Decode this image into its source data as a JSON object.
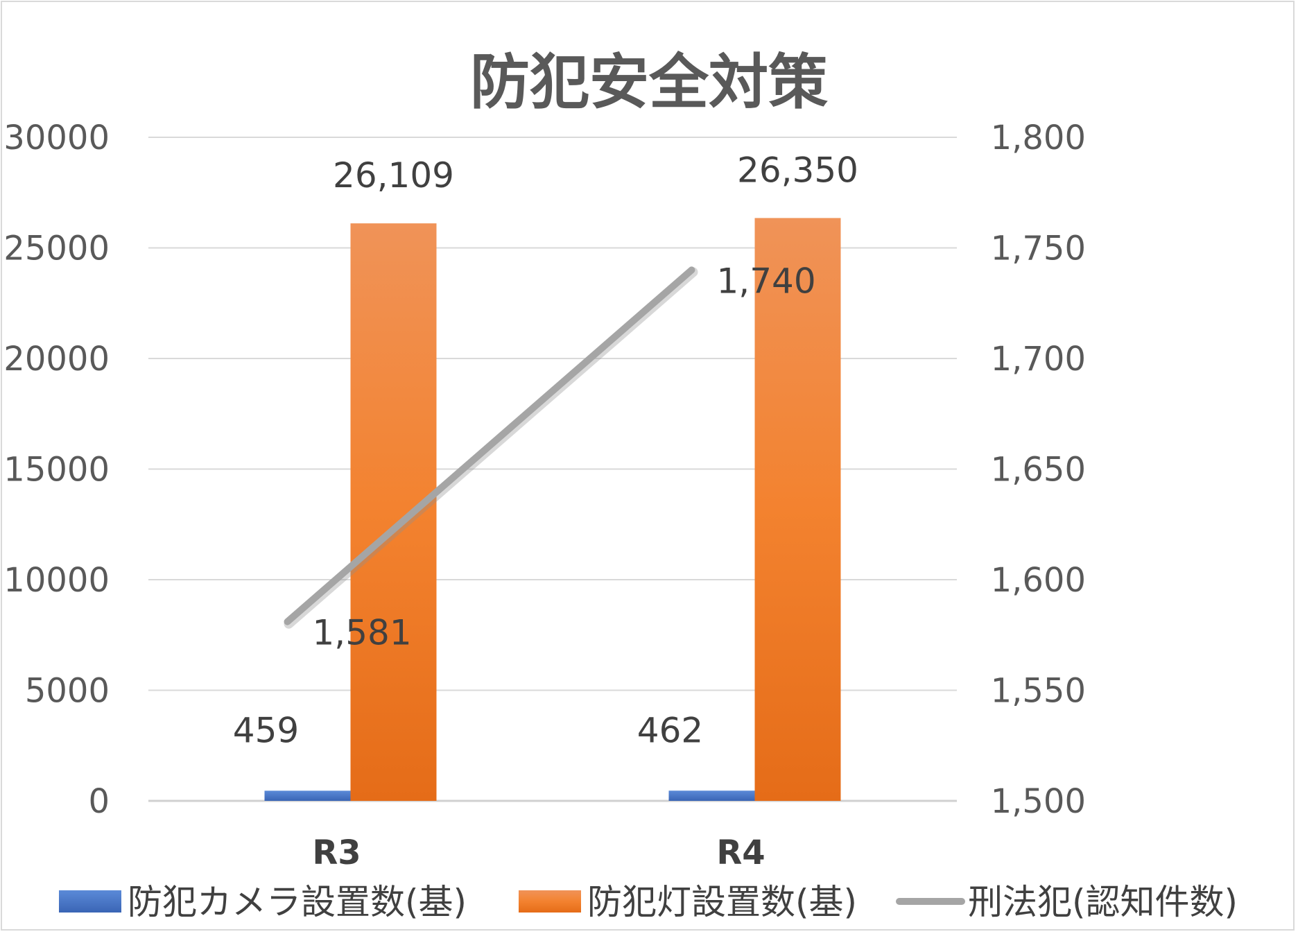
{
  "chart_data": {
    "type": "bar",
    "title": "防犯安全対策",
    "categories": [
      "R3",
      "R4"
    ],
    "y_left": {
      "min": 0,
      "max": 30000,
      "ticks": [
        "0",
        "5000",
        "10000",
        "15000",
        "20000",
        "25000",
        "30000"
      ]
    },
    "y_right": {
      "min": 1500,
      "max": 1800,
      "ticks": [
        "1,500",
        "1,550",
        "1,600",
        "1,650",
        "1,700",
        "1,750",
        "1,800"
      ]
    },
    "grid": true,
    "legend_position": "bottom",
    "series": [
      {
        "name": "防犯カメラ設置数(基)",
        "type": "bar",
        "axis": "left",
        "color": "#4472c4",
        "values": [
          459,
          462
        ],
        "labels": [
          "459",
          "462"
        ]
      },
      {
        "name": "防犯灯設置数(基)",
        "type": "bar",
        "axis": "left",
        "color": "#ed7d31",
        "values": [
          26109,
          26350
        ],
        "labels": [
          "26,109",
          "26,350"
        ]
      },
      {
        "name": "刑法犯(認知件数)",
        "type": "line",
        "axis": "right",
        "color": "#a5a5a5",
        "values": [
          1581,
          1740
        ],
        "labels": [
          "1,581",
          "1,740"
        ]
      }
    ]
  }
}
